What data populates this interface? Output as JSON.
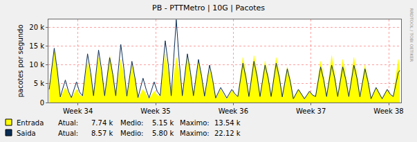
{
  "chart_data": {
    "type": "line",
    "title": "PB - PTTMetro | 10G | Pacotes",
    "y_label": "pacotes por segundo",
    "x": [
      33.63,
      33.695,
      33.735,
      33.773,
      33.838,
      33.878,
      33.916,
      33.981,
      34.021,
      34.059,
      34.124,
      34.164,
      34.201,
      34.266,
      34.306,
      34.344,
      34.409,
      34.449,
      34.487,
      34.552,
      34.592,
      34.63,
      34.695,
      34.735,
      34.773,
      34.838,
      34.878,
      34.916,
      34.981,
      35.021,
      35.059,
      35.124,
      35.164,
      35.201,
      35.266,
      35.306,
      35.344,
      35.409,
      35.449,
      35.487,
      35.552,
      35.592,
      35.63,
      35.695,
      35.735,
      35.773,
      35.838,
      35.878,
      35.916,
      35.981,
      36.021,
      36.059,
      36.124,
      36.164,
      36.201,
      36.266,
      36.306,
      36.344,
      36.409,
      36.449,
      36.487,
      36.552,
      36.592,
      36.63,
      36.695,
      36.735,
      36.773,
      36.838,
      36.878,
      36.916,
      36.981,
      37.021,
      37.059,
      37.124,
      37.164,
      37.201,
      37.266,
      37.306,
      37.344,
      37.409,
      37.449,
      37.487,
      37.552,
      37.592,
      37.63,
      37.695,
      37.735,
      37.773,
      37.838,
      37.878,
      37.916,
      37.981,
      38.021,
      38.059,
      38.124,
      38.144
    ],
    "series": [
      {
        "name": "Entrada",
        "type": "area",
        "color": "#ffff00",
        "values": [
          3000,
          13540,
          8000,
          1200,
          4000,
          2500,
          1000,
          3500,
          2000,
          1500,
          11000,
          7000,
          1500,
          12000,
          7500,
          1500,
          12500,
          7800,
          1500,
          11500,
          7000,
          1400,
          10000,
          6000,
          1000,
          3500,
          2200,
          900,
          3000,
          2000,
          1500,
          13000,
          8000,
          1500,
          12000,
          7500,
          1500,
          12500,
          7500,
          1400,
          11000,
          7000,
          1400,
          9000,
          5500,
          900,
          3500,
          2000,
          900,
          3200,
          2000,
          1500,
          12000,
          7500,
          1500,
          12500,
          7800,
          1500,
          11000,
          7000,
          1500,
          12000,
          7500,
          1400,
          9500,
          6000,
          900,
          3500,
          2200,
          900,
          3000,
          2000,
          1500,
          11000,
          7000,
          1500,
          12500,
          7500,
          1500,
          11500,
          7000,
          1500,
          12000,
          7500,
          1400,
          10000,
          6000,
          900,
          4000,
          2300,
          900,
          3500,
          2000,
          1500,
          11500,
          7740
        ]
      },
      {
        "name": "Saida",
        "type": "line",
        "color": "#0a2d55",
        "values": [
          3500,
          14500,
          8500,
          1500,
          6000,
          3000,
          1300,
          5500,
          2800,
          1800,
          13000,
          8000,
          1800,
          14000,
          8500,
          1800,
          12000,
          7500,
          1800,
          15500,
          9000,
          1700,
          11000,
          6500,
          1300,
          6500,
          3500,
          1200,
          5500,
          3000,
          1800,
          16500,
          10000,
          1800,
          22120,
          10500,
          1800,
          13000,
          8000,
          1800,
          11500,
          7000,
          1700,
          10000,
          6000,
          1200,
          4000,
          2500,
          1200,
          3500,
          2300,
          1600,
          10500,
          6500,
          1600,
          11000,
          7000,
          1600,
          10000,
          6500,
          1600,
          10500,
          6800,
          1500,
          9000,
          5500,
          1000,
          3500,
          2200,
          1000,
          3000,
          2000,
          1600,
          9500,
          6000,
          1600,
          10000,
          6500,
          1600,
          9500,
          6000,
          1600,
          10000,
          6500,
          1500,
          9000,
          5500,
          1000,
          4000,
          2500,
          1000,
          3500,
          2200,
          1600,
          8000,
          8570
        ]
      }
    ],
    "xlim": [
      33.62,
      38.16
    ],
    "xticks": [
      {
        "value": 34,
        "label": "Week 34"
      },
      {
        "value": 35,
        "label": "Week 35"
      },
      {
        "value": 36,
        "label": "Week 36"
      },
      {
        "value": 37,
        "label": "Week 37"
      },
      {
        "value": 38,
        "label": "Week 38"
      }
    ],
    "ylim": [
      0,
      22200
    ],
    "yticks": [
      0,
      {
        "value": 5000,
        "label": "5 k"
      },
      {
        "value": 10000,
        "label": "10 k"
      },
      {
        "value": 15000,
        "label": "15 k"
      },
      {
        "value": 20000,
        "label": "20 k"
      }
    ],
    "grid": true,
    "annotations": [
      "Atual:",
      "7.74 k",
      "Medio:",
      "5.15 k",
      "Maximo:",
      "13.54 k",
      "Atual:",
      "8.57 k",
      "Medio:",
      "5.80 k",
      "Maximo:",
      "22.12 k",
      "RRDTOOL / TOBI OETIKER"
    ]
  }
}
